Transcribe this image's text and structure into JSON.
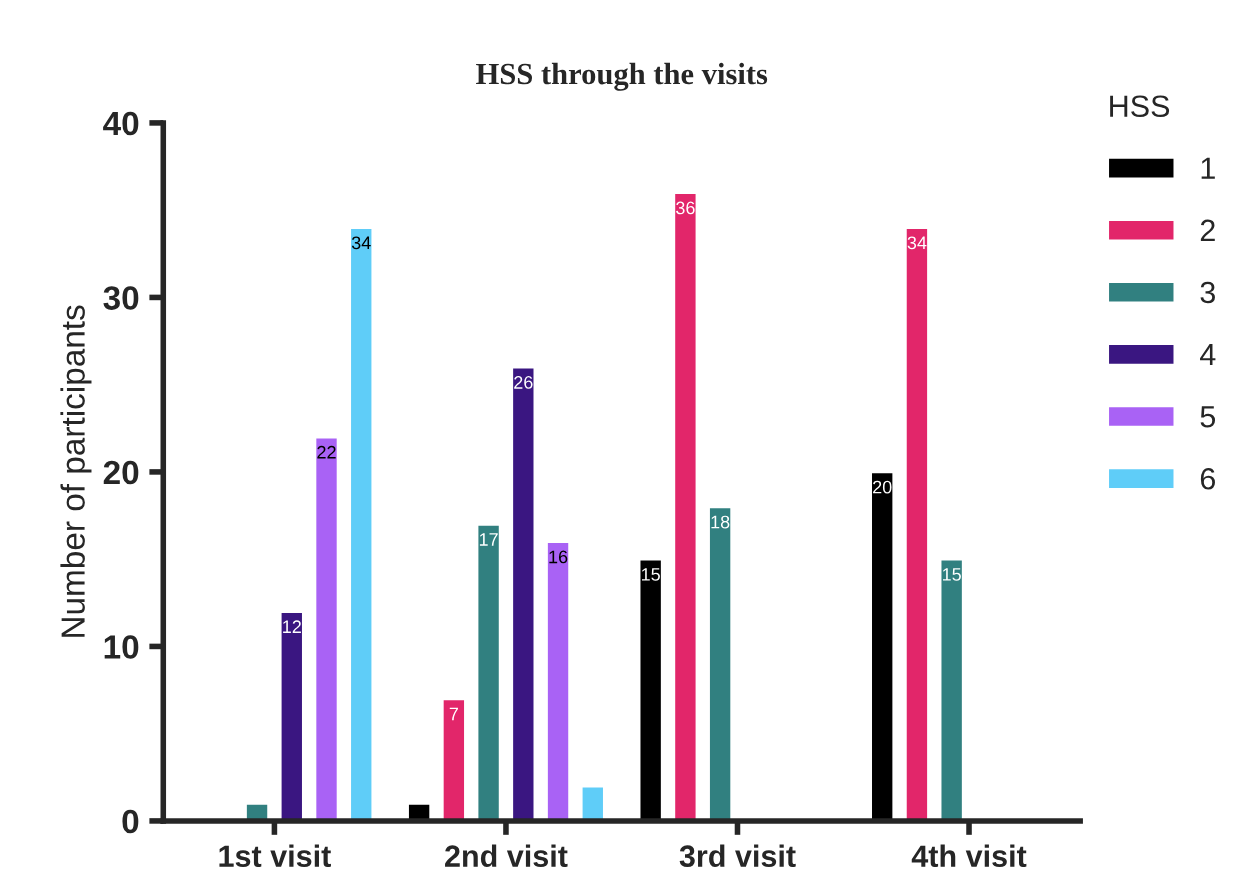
{
  "chart_data": {
    "type": "bar",
    "title": "HSS through the visits",
    "ylabel": "Number of participants",
    "legend_title": "HSS",
    "categories": [
      "1st visit",
      "2nd visit",
      "3rd visit",
      "4th visit"
    ],
    "series": [
      {
        "name": "1",
        "color": "#000000",
        "values": [
          null,
          1,
          15,
          20
        ],
        "value_labels": [
          null,
          null,
          "15",
          "20"
        ]
      },
      {
        "name": "2",
        "color": "#e2266a",
        "values": [
          null,
          7,
          36,
          34
        ],
        "value_labels": [
          null,
          "7",
          "36",
          "34"
        ]
      },
      {
        "name": "3",
        "color": "#318080",
        "values": [
          1,
          17,
          18,
          15
        ],
        "value_labels": [
          null,
          "17",
          "18",
          "15"
        ]
      },
      {
        "name": "4",
        "color": "#3a1681",
        "values": [
          12,
          26,
          null,
          null
        ],
        "value_labels": [
          "12",
          "26",
          null,
          null
        ]
      },
      {
        "name": "5",
        "color": "#a962f5",
        "values": [
          22,
          16,
          null,
          null
        ],
        "value_labels": [
          "22",
          "16",
          null,
          null
        ]
      },
      {
        "name": "6",
        "color": "#5fcdf8",
        "values": [
          34,
          2,
          null,
          null
        ],
        "value_labels": [
          "34",
          null,
          null,
          null
        ]
      }
    ],
    "ylim": [
      0,
      40
    ],
    "yticks": [
      0,
      10,
      20,
      30,
      40
    ],
    "grid": false,
    "legend": "top right"
  }
}
